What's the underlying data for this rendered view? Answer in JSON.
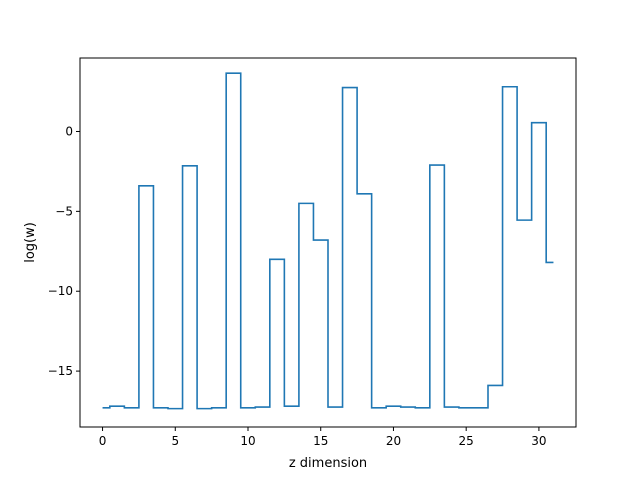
{
  "chart_data": {
    "type": "line",
    "step": "mid",
    "title": "",
    "xlabel": "z dimension",
    "ylabel": "log(w)",
    "xlim": [
      -1.55,
      32.55
    ],
    "ylim": [
      -18.5,
      4.6
    ],
    "xticks": [
      0,
      5,
      10,
      15,
      20,
      25,
      30
    ],
    "yticks": [
      -15,
      -10,
      -5,
      0
    ],
    "ytick_labels": [
      "−15",
      "−10",
      "−5",
      "0"
    ],
    "line_color": "#1f77b4",
    "grid": false,
    "series": [
      {
        "x": [
          0,
          1,
          2,
          3,
          4,
          5,
          6,
          7,
          8,
          9,
          10,
          11,
          12,
          13,
          14,
          15,
          16,
          17,
          18,
          19,
          20,
          21,
          22,
          23,
          24,
          25,
          26,
          27,
          28,
          29,
          30,
          31
        ],
        "values": [
          -17.3,
          -17.2,
          -17.3,
          -3.4,
          -17.3,
          -17.35,
          -2.15,
          -17.35,
          -17.3,
          3.65,
          -17.3,
          -17.25,
          -8.0,
          -17.2,
          -4.5,
          -6.8,
          -17.25,
          2.75,
          -3.9,
          -17.3,
          -17.2,
          -17.25,
          -17.3,
          -2.1,
          -17.25,
          -17.3,
          -17.3,
          -15.9,
          2.8,
          -5.55,
          0.55,
          -8.2
        ]
      }
    ]
  }
}
